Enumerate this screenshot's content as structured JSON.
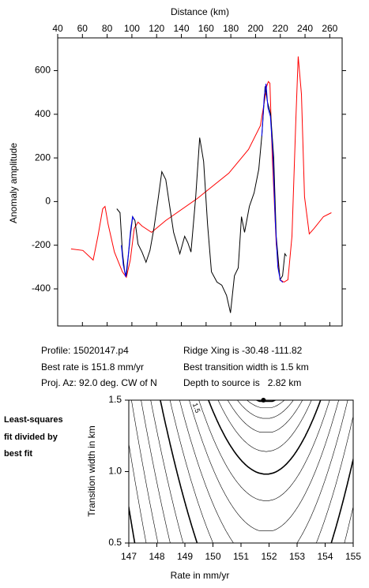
{
  "profile_chart": {
    "type": "line",
    "xlabel": "Distance (km)",
    "ylabel": "Anomaly amplitude",
    "xlim": [
      40,
      270
    ],
    "xticks": [
      40,
      60,
      80,
      100,
      120,
      140,
      160,
      180,
      200,
      220,
      240,
      260
    ],
    "ylim": [
      -570,
      750
    ],
    "yticks": [
      -400,
      -200,
      0,
      200,
      400,
      600
    ],
    "series": [
      {
        "color": "#ff0000",
        "x": [
          50.8,
          60.4,
          68.7,
          72.5,
          76.4,
          78.3,
          80.8,
          85.9,
          92.3,
          95.5,
          98.7,
          101.9,
          105,
          108.2,
          115.9,
          127.4,
          152.9,
          178.4,
          194.3,
          203.9,
          207.1,
          209,
          210.3,
          211.6,
          213.5,
          216.7,
          219.8,
          223,
          226.2,
          229.4,
          232.6,
          234.5,
          237.1,
          239.6,
          243.4,
          247.3,
          254.9,
          261.3
        ],
        "values": [
          -217,
          -224,
          -268,
          -159,
          -33,
          -22,
          -105,
          -231,
          -322,
          -347,
          -268,
          -123,
          -94,
          -112,
          -141,
          -87,
          14,
          130,
          239,
          347,
          456,
          528,
          550,
          542,
          203,
          -195,
          -358,
          -369,
          -358,
          -159,
          383,
          665,
          492,
          22,
          -148,
          -123,
          -69,
          -51
        ]
      },
      {
        "color": "#000000",
        "x": [
          87.8,
          90.4,
          92.3,
          94.2,
          95.5,
          98.7,
          100.6,
          102.5,
          105,
          108.2,
          111.4,
          114.6,
          117.8,
          121,
          124.2,
          127.4,
          130.6,
          133.7,
          138.8,
          142.7,
          145.2,
          147.8,
          151.6,
          154.8,
          158,
          161.2,
          164.3,
          168.8,
          172.7,
          176.5,
          179.7,
          182.9,
          186,
          188.6,
          191.1,
          195,
          198.8,
          202.6,
          205.2,
          207.7,
          209.6,
          212.2,
          214.7,
          216.7,
          219.8,
          221.8,
          223.7,
          225
        ],
        "values": [
          -33,
          -51,
          -231,
          -322,
          -340,
          -159,
          -69,
          -87,
          -195,
          -231,
          -278,
          -224,
          -123,
          4,
          137,
          101,
          -22,
          -141,
          -239,
          -159,
          -188,
          -231,
          22,
          293,
          184,
          -105,
          -322,
          -369,
          -383,
          -430,
          -510,
          -340,
          -304,
          -69,
          -141,
          -22,
          40,
          148,
          311,
          528,
          456,
          401,
          203,
          -159,
          -358,
          -340,
          -239,
          -250
        ]
      },
      {
        "color": "#0000ff",
        "x": [
          91.5,
          93,
          95,
          97,
          99,
          100.5,
          102,
          null,
          205,
          207,
          208.5,
          210,
          212,
          214,
          216,
          218,
          220,
          222
        ],
        "values": [
          -200,
          -290,
          -345,
          -250,
          -130,
          -70,
          -85,
          null,
          300,
          480,
          540,
          430,
          390,
          220,
          -100,
          -300,
          -360,
          -370
        ]
      }
    ]
  },
  "info": {
    "profile": "Profile: 15020147.p4",
    "best_rate": "Best rate is 151.8 mm/yr",
    "proj_az": "Proj. Az: 92.0 deg. CW of N",
    "ridge_xing": "Ridge Xing is -30.48 -111.82",
    "best_width": "Best transition width is 1.5 km",
    "depth": "Depth to source is   2.82 km"
  },
  "side_note": [
    "Least-squares",
    "fit divided by",
    "best fit"
  ],
  "contour_chart": {
    "type": "contour",
    "xlabel": "Rate in mm/yr",
    "ylabel": "Transition width in km",
    "xlim": [
      147,
      155
    ],
    "xticks": [
      147,
      148,
      149,
      150,
      151,
      152,
      153,
      154,
      155
    ],
    "ylim": [
      0.5,
      1.5
    ],
    "yticks": [
      {
        "value": 0.5,
        "label": "0.5"
      },
      {
        "value": 1.0,
        "label": "1.0"
      },
      {
        "value": 1.5,
        "label": "1.5"
      }
    ],
    "best_point": {
      "x": 151.8,
      "y": 1.5
    },
    "contour_label": "1.5"
  }
}
